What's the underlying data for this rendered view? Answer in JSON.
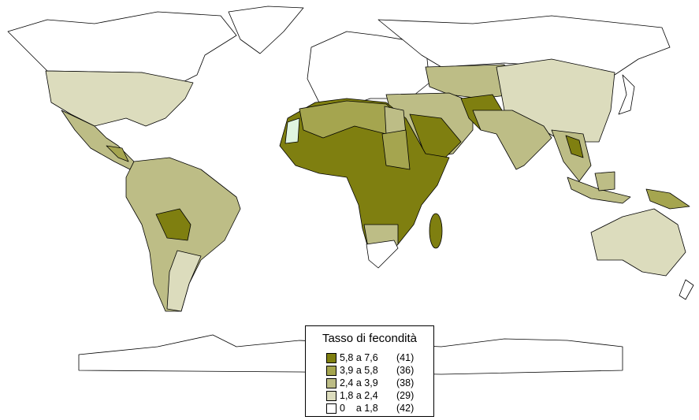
{
  "legend": {
    "title": "Tasso di fecondità",
    "items": [
      {
        "range": "5,8 a 7,6",
        "count": "(41)",
        "color": "#7f7f10"
      },
      {
        "range": "3,9 a 5,8",
        "count": "(36)",
        "color": "#a5a54f"
      },
      {
        "range": "2,4 a 3,9",
        "count": "(38)",
        "color": "#bdbd86"
      },
      {
        "range": "1,8 a 2,4",
        "count": "(29)",
        "color": "#dcdcbd"
      },
      {
        "range": "0    a 1,8",
        "count": "(42)",
        "color": "#ffffff"
      }
    ]
  }
}
